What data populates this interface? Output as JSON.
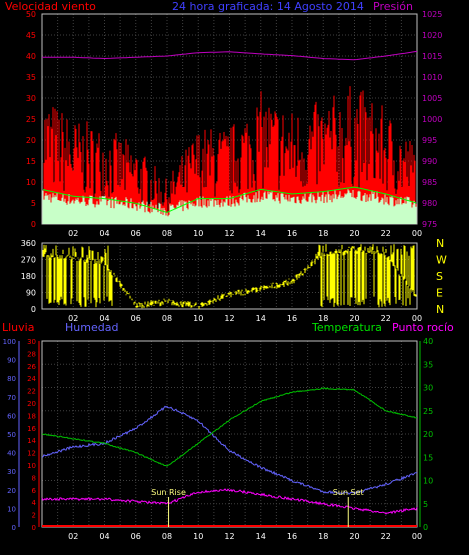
{
  "top_panel": {
    "title": "24 hora graficada: 14 Agosto 2014",
    "left_label": "Velocidad viento",
    "right_label": "Presión",
    "left_ticks": [
      "0",
      "5",
      "10",
      "15",
      "20",
      "25",
      "30",
      "35",
      "40",
      "45",
      "50"
    ],
    "right_ticks": [
      "975",
      "980",
      "985",
      "990",
      "995",
      "1000",
      "1005",
      "1010",
      "1015",
      "1020",
      "1025"
    ]
  },
  "direction_panel": {
    "left_ticks": [
      "0",
      "90",
      "180",
      "270",
      "360"
    ],
    "right_letters": [
      "N",
      "W",
      "S",
      "E",
      "N"
    ]
  },
  "bottom_panel": {
    "label_rain": "Lluvia",
    "label_humidity": "Humedad",
    "label_temp": "Temperatura",
    "label_dew": "Punto rocío",
    "humidity_ticks": [
      "0",
      "10",
      "20",
      "30",
      "40",
      "50",
      "60",
      "70",
      "80",
      "90",
      "100"
    ],
    "rain_ticks": [
      "0",
      "2",
      "4",
      "6",
      "8",
      "10",
      "12",
      "14",
      "16",
      "18",
      "20",
      "22",
      "24",
      "26",
      "28",
      "30"
    ],
    "temp_ticks": [
      "0",
      "5",
      "10",
      "15",
      "20",
      "25",
      "30",
      "35",
      "40"
    ],
    "sunrise_label": "Sun Rise",
    "sunset_label": "Sun Set"
  },
  "x_axis": {
    "labels": [
      "02",
      "04",
      "06",
      "08",
      "10",
      "12",
      "14",
      "16",
      "18",
      "20",
      "22",
      "00"
    ]
  },
  "colors": {
    "wind": "#ff0000",
    "gust_bg": "#ffffff",
    "avg_wind": "#00ff00",
    "pressure": "#c000c0",
    "direction": "#ffff00",
    "rain": "#ff0000",
    "humidity": "#6464ff",
    "temperature": "#00c000",
    "dewpoint": "#ff00ff",
    "grid": "#404040",
    "axis": "#ffffff",
    "title": "#4040ff"
  },
  "chart_data": [
    {
      "type": "line",
      "title": "24 hora graficada: 14 Agosto 2014",
      "ylabel": "Velocidad viento",
      "y2label": "Presión",
      "ylim": [
        0,
        50
      ],
      "y2lim": [
        975,
        1025
      ],
      "x": [
        "00",
        "02",
        "04",
        "06",
        "08",
        "10",
        "12",
        "14",
        "16",
        "18",
        "20",
        "22",
        "00"
      ],
      "series": [
        {
          "name": "Velocidad viento",
          "axis": "left",
          "values": [
            15,
            12,
            11,
            9,
            5,
            11,
            11,
            15,
            13,
            14,
            16,
            13,
            9
          ]
        },
        {
          "name": "Presión",
          "axis": "right",
          "values": [
            1014.7,
            1014.7,
            1014.4,
            1014.7,
            1015.0,
            1015.8,
            1016.0,
            1015.5,
            1015.1,
            1014.4,
            1014.1,
            1015.0,
            1016.1
          ]
        }
      ]
    },
    {
      "type": "line",
      "ylim": [
        0,
        360
      ],
      "x": [
        "00",
        "02",
        "04",
        "06",
        "08",
        "10",
        "12",
        "14",
        "16",
        "18",
        "20",
        "22",
        "00"
      ],
      "series": [
        {
          "name": "Dirección",
          "values": [
            300,
            280,
            250,
            20,
            40,
            15,
            80,
            110,
            150,
            300,
            330,
            300,
            60
          ]
        }
      ]
    },
    {
      "type": "line",
      "x": [
        "00",
        "02",
        "04",
        "06",
        "08",
        "10",
        "12",
        "14",
        "16",
        "18",
        "20",
        "22",
        "00"
      ],
      "series": [
        {
          "name": "Lluvia",
          "axis": "rain",
          "ylim": [
            0,
            30
          ],
          "values": [
            0,
            0,
            0,
            0,
            0,
            0,
            0,
            0,
            0,
            0,
            0,
            0,
            0
          ]
        },
        {
          "name": "Humedad",
          "axis": "humidity",
          "ylim": [
            0,
            100
          ],
          "values": [
            38,
            43,
            45,
            53,
            65,
            57,
            41,
            32,
            25,
            19,
            18,
            23,
            29
          ]
        },
        {
          "name": "Temperatura",
          "axis": "temp",
          "ylim": [
            0,
            40
          ],
          "values": [
            20,
            19,
            18,
            16,
            13,
            18,
            23,
            27,
            29,
            29.8,
            29.5,
            25,
            23.5
          ]
        },
        {
          "name": "Punto rocío",
          "axis": "temp",
          "ylim": [
            0,
            40
          ],
          "values": [
            6,
            6,
            6,
            5.5,
            5,
            7.5,
            8,
            7,
            6,
            5,
            4,
            3,
            4
          ]
        }
      ]
    }
  ]
}
